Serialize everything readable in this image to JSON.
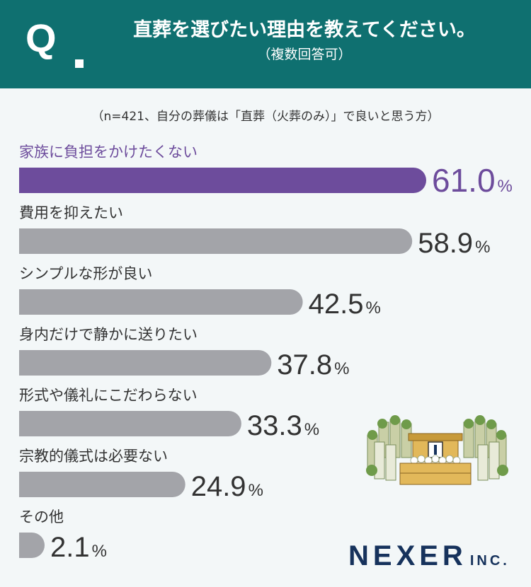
{
  "header": {
    "q_mark": "Q",
    "question": "直葬を選びたい理由を教えてください。",
    "sub": "（複数回答可）"
  },
  "note": "（n=421、自分の葬儀は「直葬（火葬のみ）」で良いと思う方）",
  "chart_data": {
    "type": "bar",
    "orientation": "horizontal",
    "categories": [
      "家族に負担をかけたくない",
      "費用を抑えたい",
      "シンプルな形が良い",
      "身内だけで静かに送りたい",
      "形式や儀礼にこだわらない",
      "宗教的儀式は必要ない",
      "その他"
    ],
    "values": [
      61.0,
      58.9,
      42.5,
      37.8,
      33.3,
      24.9,
      2.1
    ],
    "value_labels": [
      "61.0",
      "58.9",
      "42.5",
      "37.8",
      "33.3",
      "24.9",
      "2.1"
    ],
    "unit": "%",
    "highlight_index": 0,
    "colors": {
      "highlight": "#6d4c9c",
      "default": "#a3a4a9",
      "label": "#333333",
      "highlight_label": "#6d4c9c"
    }
  },
  "logo": {
    "main": "NEXER",
    "suffix": "INC."
  }
}
